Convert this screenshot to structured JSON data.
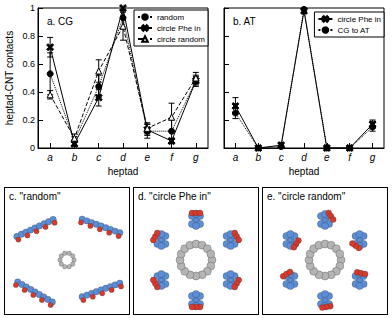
{
  "chart_data": [
    {
      "type": "line",
      "title": "a. CG",
      "x_label": "heptad",
      "y_label": "heptad-CNT contacts",
      "categories": [
        "a",
        "b",
        "c",
        "d",
        "e",
        "f",
        "g"
      ],
      "ylim": [
        0,
        1
      ],
      "yticks": [
        0,
        0.2,
        0.4,
        0.6,
        0.8,
        1
      ],
      "legend": "upper right",
      "series": [
        {
          "name": "random",
          "color": "#000000",
          "marker": "circle",
          "line_style": "dotted",
          "values": [
            0.53,
            0.05,
            0.44,
            0.93,
            0.12,
            0.12,
            0.48
          ],
          "errors": [
            0.15,
            0.03,
            0.08,
            0.08,
            0.05,
            0.08,
            0.04
          ]
        },
        {
          "name": "circle Phe in",
          "color": "#000000",
          "marker": "x",
          "line_style": "solid",
          "values": [
            0.72,
            0.03,
            0.36,
            1.0,
            0.13,
            0.05,
            0.48
          ],
          "errors": [
            0.07,
            0.02,
            0.06,
            0.02,
            0.04,
            0.02,
            0.03
          ]
        },
        {
          "name": "circle random",
          "color": "#000000",
          "marker": "triangle",
          "line_style": "dashed",
          "values": [
            0.38,
            0.07,
            0.55,
            0.87,
            0.14,
            0.22,
            0.5
          ],
          "errors": [
            0.03,
            0.03,
            0.08,
            0.1,
            0.04,
            0.1,
            0.04
          ]
        }
      ]
    },
    {
      "type": "line",
      "title": "b. AT",
      "x_label": "heptad",
      "categories": [
        "a",
        "b",
        "c",
        "d",
        "e",
        "f",
        "g"
      ],
      "ylim": [
        0,
        1
      ],
      "yticks": [
        0,
        0.2,
        0.4,
        0.6,
        0.8,
        1
      ],
      "legend": "upper right",
      "tick_labels": "x",
      "series": [
        {
          "name": "circle Phe in",
          "color": "#000000",
          "marker": "x",
          "line_style": "solid",
          "values": [
            0.3,
            0.0,
            0.02,
            0.98,
            0.0,
            0.0,
            0.17
          ],
          "errors": [
            0.06,
            0.01,
            0.02,
            0.02,
            0.01,
            0.01,
            0.03
          ]
        },
        {
          "name": "CG to AT",
          "color": "#000000",
          "marker": "circle",
          "line_style": "dotted",
          "values": [
            0.25,
            0.0,
            0.01,
            0.99,
            0.0,
            0.0,
            0.15
          ],
          "errors": [
            0.04,
            0.01,
            0.01,
            0.02,
            0.01,
            0.01,
            0.03
          ]
        }
      ]
    }
  ],
  "panels": [
    {
      "label": "c. \"random\"",
      "arrangement": "random"
    },
    {
      "label": "d. \"circle Phe in\"",
      "arrangement": "circle Phe in"
    },
    {
      "label": "e. \"circle random\"",
      "arrangement": "circle random"
    }
  ]
}
